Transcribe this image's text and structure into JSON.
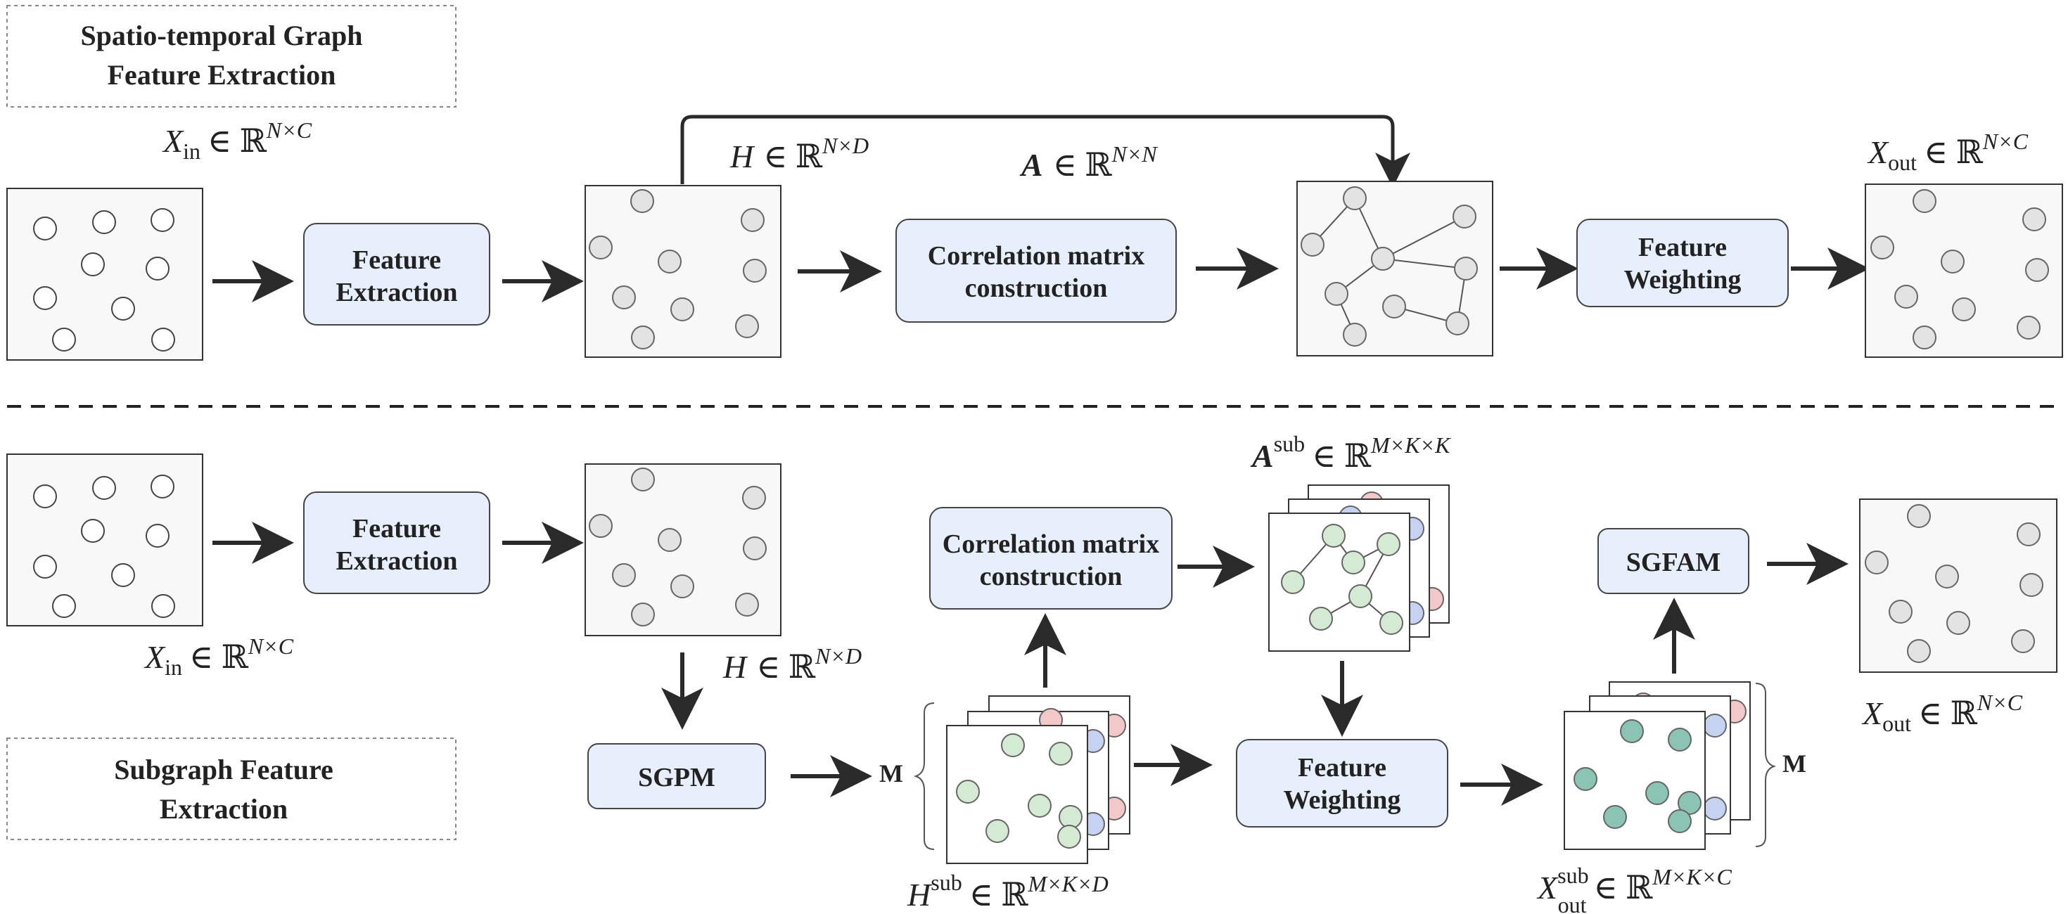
{
  "section_top": {
    "title_line1": "Spatio-temporal Graph",
    "title_line2": "Feature Extraction",
    "x_in": {
      "sym": "X",
      "sub": "in",
      "space": "ℝ",
      "dims": "N×C"
    },
    "h": {
      "sym": "H",
      "space": "ℝ",
      "dims": "N×D"
    },
    "a": {
      "sym": "A",
      "space": "ℝ",
      "dims": "N×N"
    },
    "x_out": {
      "sym": "X",
      "sub": "out",
      "space": "ℝ",
      "dims": "N×C"
    },
    "feature_extraction": {
      "line1": "Feature",
      "line2": "Extraction"
    },
    "correlation": {
      "line1": "Correlation matrix",
      "line2": "construction"
    },
    "feature_weighting": {
      "line1": "Feature",
      "line2": "Weighting"
    }
  },
  "section_bottom": {
    "title_line1": "Subgraph Feature",
    "title_line2": "Extraction",
    "x_in": {
      "sym": "X",
      "sub": "in",
      "space": "ℝ",
      "dims": "N×C"
    },
    "h": {
      "sym": "H",
      "space": "ℝ",
      "dims": "N×D"
    },
    "a_sub": {
      "sym": "A",
      "sup": "sub",
      "space": "ℝ",
      "dims": "M×K×K"
    },
    "h_sub": {
      "sym": "H",
      "sup": "sub",
      "space": "ℝ",
      "dims": "M×K×D"
    },
    "x_out_sub": {
      "sym": "X",
      "sup": "sub",
      "sub": "out",
      "space": "ℝ",
      "dims": "M×K×C"
    },
    "x_out": {
      "sym": "X",
      "sub": "out",
      "space": "ℝ",
      "dims": "N×C"
    },
    "feature_extraction": {
      "line1": "Feature",
      "line2": "Extraction"
    },
    "correlation": {
      "line1": "Correlation matrix",
      "line2": "construction"
    },
    "feature_weighting": {
      "line1": "Feature",
      "line2": "Weighting"
    },
    "sgpm": "SGPM",
    "sgfam": "SGFAM",
    "m_label_left": "M",
    "m_label_right": "M"
  },
  "colors": {
    "box_fill": "#e8effc",
    "node_gray": "#e3e3e3",
    "node_green": "#d5ead3",
    "node_teal": "#8cc4b4",
    "node_blue": "#c6d2f2",
    "node_pink": "#f3c8c8"
  }
}
